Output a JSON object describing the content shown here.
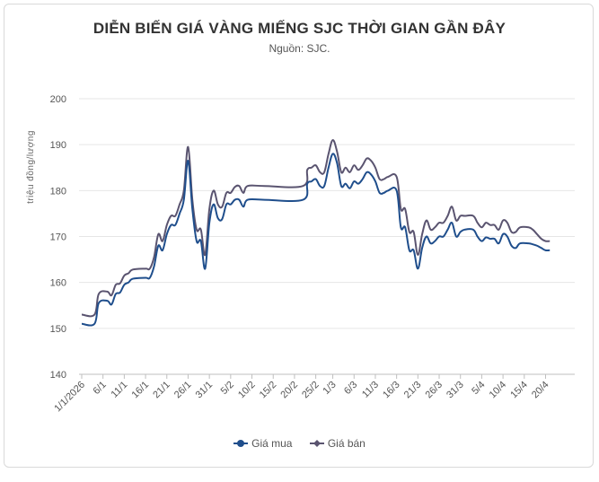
{
  "title": "DIỄN BIẾN GIÁ VÀNG MIẾNG SJC THỜI GIAN GẦN ĐÂY",
  "subtitle": "Nguồn: SJC.",
  "chart_data": {
    "type": "line",
    "title": "DIỄN BIẾN GIÁ VÀNG MIẾNG SJC THỜI GIAN GẦN ĐÂY",
    "subtitle": "Nguồn: SJC.",
    "ylabel": "triệu đồng/lượng",
    "xlabel": "",
    "ylim": [
      140,
      200
    ],
    "yticks": [
      140,
      150,
      160,
      170,
      180,
      190,
      200
    ],
    "xlim": [
      0,
      113
    ],
    "x_tick_labels": [
      {
        "d": 0,
        "label": "1/1/2026"
      },
      {
        "d": 5,
        "label": "6/1"
      },
      {
        "d": 10,
        "label": "11/1"
      },
      {
        "d": 15,
        "label": "16/1"
      },
      {
        "d": 20,
        "label": "21/1"
      },
      {
        "d": 25,
        "label": "26/1"
      },
      {
        "d": 30,
        "label": "31/1"
      },
      {
        "d": 35,
        "label": "5/2"
      },
      {
        "d": 40,
        "label": "10/2"
      },
      {
        "d": 45,
        "label": "15/2"
      },
      {
        "d": 50,
        "label": "20/2"
      },
      {
        "d": 55,
        "label": "25/2"
      },
      {
        "d": 59,
        "label": "1/3"
      },
      {
        "d": 64,
        "label": "6/3"
      },
      {
        "d": 69,
        "label": "11/3"
      },
      {
        "d": 74,
        "label": "16/3"
      },
      {
        "d": 79,
        "label": "21/3"
      },
      {
        "d": 84,
        "label": "26/3"
      },
      {
        "d": 89,
        "label": "31/3"
      },
      {
        "d": 94,
        "label": "5/4"
      },
      {
        "d": 99,
        "label": "10/4"
      },
      {
        "d": 104,
        "label": "15/4"
      },
      {
        "d": 109,
        "label": "20/4"
      }
    ],
    "grid": true,
    "legend_position": "bottom",
    "series": [
      {
        "name": "Giá mua",
        "color": "#1f4e8c",
        "points": [
          [
            0,
            151
          ],
          [
            3,
            151
          ],
          [
            4,
            155.5
          ],
          [
            6,
            156
          ],
          [
            7,
            155.2
          ],
          [
            8,
            157.5
          ],
          [
            9,
            157.8
          ],
          [
            10,
            159.5
          ],
          [
            11,
            160
          ],
          [
            12,
            160.8
          ],
          [
            15,
            161
          ],
          [
            16,
            161
          ],
          [
            17,
            163.5
          ],
          [
            18,
            168
          ],
          [
            19,
            167
          ],
          [
            20,
            170.5
          ],
          [
            21,
            172.5
          ],
          [
            22,
            172.5
          ],
          [
            23,
            175
          ],
          [
            24,
            178
          ],
          [
            25,
            186.5
          ],
          [
            26,
            176
          ],
          [
            27,
            169
          ],
          [
            28,
            169
          ],
          [
            29,
            163
          ],
          [
            30,
            173
          ],
          [
            31,
            177
          ],
          [
            32,
            174
          ],
          [
            33,
            173.8
          ],
          [
            34,
            177
          ],
          [
            35,
            177
          ],
          [
            36,
            178
          ],
          [
            37,
            178
          ],
          [
            38,
            176.5
          ],
          [
            39,
            178
          ],
          [
            43,
            178
          ],
          [
            52,
            178
          ],
          [
            53,
            181.5
          ],
          [
            54,
            182
          ],
          [
            55,
            182.5
          ],
          [
            56,
            181
          ],
          [
            57,
            181
          ],
          [
            58,
            185
          ],
          [
            59,
            188
          ],
          [
            60,
            186
          ],
          [
            61,
            181
          ],
          [
            62,
            181.5
          ],
          [
            63,
            180.5
          ],
          [
            64,
            182
          ],
          [
            65,
            181.5
          ],
          [
            66,
            182.5
          ],
          [
            67,
            184
          ],
          [
            68,
            183.5
          ],
          [
            69,
            182
          ],
          [
            70,
            179.5
          ],
          [
            71,
            179.5
          ],
          [
            72,
            180
          ],
          [
            74,
            180
          ],
          [
            75,
            172
          ],
          [
            76,
            172
          ],
          [
            77,
            167
          ],
          [
            78,
            167
          ],
          [
            79,
            163
          ],
          [
            80,
            167.5
          ],
          [
            81,
            170
          ],
          [
            82,
            168.5
          ],
          [
            83,
            169
          ],
          [
            84,
            170
          ],
          [
            85,
            170
          ],
          [
            86,
            171.5
          ],
          [
            87,
            173
          ],
          [
            88,
            170
          ],
          [
            89,
            171
          ],
          [
            90,
            171.5
          ],
          [
            92,
            171.5
          ],
          [
            93,
            170
          ],
          [
            94,
            169
          ],
          [
            95,
            169.8
          ],
          [
            96,
            169.5
          ],
          [
            97,
            169.5
          ],
          [
            98,
            168.5
          ],
          [
            99,
            170.5
          ],
          [
            100,
            170
          ],
          [
            101,
            168
          ],
          [
            102,
            167.5
          ],
          [
            103,
            168.5
          ],
          [
            105,
            168.5
          ],
          [
            106,
            168.3
          ],
          [
            107,
            168
          ],
          [
            108,
            167.5
          ],
          [
            109,
            167
          ],
          [
            110,
            167
          ]
        ]
      },
      {
        "name": "Giá bán",
        "color": "#5a5470",
        "points": [
          [
            0,
            153
          ],
          [
            3,
            153
          ],
          [
            4,
            157.5
          ],
          [
            6,
            158
          ],
          [
            7,
            157.2
          ],
          [
            8,
            159.5
          ],
          [
            9,
            159.8
          ],
          [
            10,
            161.5
          ],
          [
            11,
            162
          ],
          [
            12,
            162.8
          ],
          [
            15,
            163
          ],
          [
            16,
            163
          ],
          [
            17,
            165.5
          ],
          [
            18,
            170.5
          ],
          [
            19,
            169
          ],
          [
            20,
            172.5
          ],
          [
            21,
            174.5
          ],
          [
            22,
            174.5
          ],
          [
            23,
            177
          ],
          [
            24,
            180
          ],
          [
            25,
            189.5
          ],
          [
            26,
            178
          ],
          [
            27,
            171.5
          ],
          [
            28,
            171.5
          ],
          [
            29,
            166
          ],
          [
            30,
            176
          ],
          [
            31,
            180
          ],
          [
            32,
            177
          ],
          [
            33,
            176.5
          ],
          [
            34,
            179.5
          ],
          [
            35,
            179.5
          ],
          [
            36,
            180.8
          ],
          [
            37,
            181
          ],
          [
            38,
            179.5
          ],
          [
            39,
            181
          ],
          [
            43,
            181
          ],
          [
            52,
            181
          ],
          [
            53,
            184.5
          ],
          [
            54,
            185
          ],
          [
            55,
            185.5
          ],
          [
            56,
            184
          ],
          [
            57,
            184
          ],
          [
            58,
            188
          ],
          [
            59,
            191
          ],
          [
            60,
            188.5
          ],
          [
            61,
            184
          ],
          [
            62,
            185
          ],
          [
            63,
            184
          ],
          [
            64,
            185.5
          ],
          [
            65,
            184.5
          ],
          [
            66,
            185.5
          ],
          [
            67,
            187
          ],
          [
            68,
            186.5
          ],
          [
            69,
            185
          ],
          [
            70,
            182.5
          ],
          [
            71,
            182.5
          ],
          [
            72,
            183
          ],
          [
            74,
            183
          ],
          [
            75,
            176
          ],
          [
            76,
            176
          ],
          [
            77,
            171
          ],
          [
            78,
            171
          ],
          [
            79,
            166
          ],
          [
            80,
            170.5
          ],
          [
            81,
            173.5
          ],
          [
            82,
            171.5
          ],
          [
            83,
            172
          ],
          [
            84,
            173
          ],
          [
            85,
            173
          ],
          [
            86,
            174.5
          ],
          [
            87,
            176.5
          ],
          [
            88,
            173.5
          ],
          [
            89,
            174.5
          ],
          [
            90,
            174.5
          ],
          [
            92,
            174.5
          ],
          [
            93,
            173
          ],
          [
            94,
            172
          ],
          [
            95,
            173
          ],
          [
            96,
            172.5
          ],
          [
            97,
            172.5
          ],
          [
            98,
            171.5
          ],
          [
            99,
            173.5
          ],
          [
            100,
            173
          ],
          [
            101,
            171
          ],
          [
            102,
            171
          ],
          [
            103,
            172
          ],
          [
            105,
            172
          ],
          [
            106,
            171.5
          ],
          [
            107,
            170.5
          ],
          [
            108,
            169.5
          ],
          [
            109,
            169
          ],
          [
            110,
            169
          ]
        ]
      }
    ]
  }
}
